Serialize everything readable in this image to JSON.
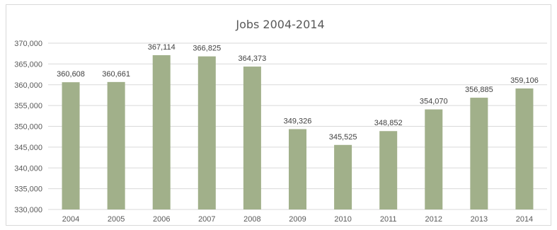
{
  "chart_data": {
    "type": "bar",
    "title": "Jobs 2004-2014",
    "xlabel": "",
    "ylabel": "",
    "categories": [
      "2004",
      "2005",
      "2006",
      "2007",
      "2008",
      "2009",
      "2010",
      "2011",
      "2012",
      "2013",
      "2014"
    ],
    "values": [
      360608,
      360661,
      367114,
      366825,
      364373,
      349326,
      345525,
      348852,
      354070,
      356885,
      359106
    ],
    "value_labels": [
      "360,608",
      "360,661",
      "367,114",
      "366,825",
      "364,373",
      "349,326",
      "345,525",
      "348,852",
      "354,070",
      "356,885",
      "359,106"
    ],
    "ylim": [
      330000,
      370000
    ],
    "yticks": [
      330000,
      335000,
      340000,
      345000,
      350000,
      355000,
      360000,
      365000,
      370000
    ],
    "ytick_labels": [
      "330,000",
      "335,000",
      "340,000",
      "345,000",
      "350,000",
      "355,000",
      "360,000",
      "365,000",
      "370,000"
    ],
    "bar_color": "#a1b08a",
    "grid": true,
    "grid_color": "#d9d9d9",
    "legend": "none"
  }
}
